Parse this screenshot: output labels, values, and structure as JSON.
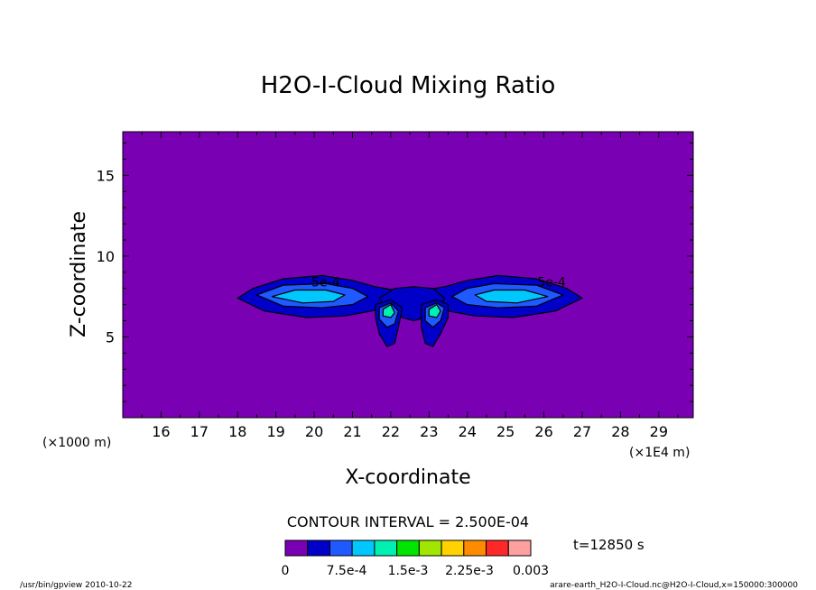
{
  "chart_data": {
    "type": "heatmap",
    "title": "H2O-I-Cloud Mixing Ratio",
    "xlabel": "X-coordinate",
    "ylabel": "Z-coordinate",
    "x_unit_left": "(×1000 m)",
    "x_unit_right": "(×1E4 m)",
    "x_ticks": [
      "16",
      "17",
      "18",
      "19",
      "20",
      "21",
      "22",
      "23",
      "24",
      "25",
      "26",
      "27",
      "28",
      "29"
    ],
    "x_tick_values": [
      16,
      17,
      18,
      19,
      20,
      21,
      22,
      23,
      24,
      25,
      26,
      27,
      28,
      29
    ],
    "y_ticks": [
      "5",
      "10",
      "15"
    ],
    "y_tick_values": [
      5,
      10,
      15
    ],
    "xlim": [
      15,
      29.9
    ],
    "ylim": [
      0,
      17.7
    ],
    "contour_interval_text": "CONTOUR INTERVAL = 2.500E-04",
    "contour_labels": [
      {
        "text": "5e-4",
        "x": 20.3,
        "y": 8.4
      },
      {
        "text": "5e-4",
        "x": 26.2,
        "y": 8.4
      }
    ],
    "time_text": "t=12850 s",
    "colorbar": {
      "colors": [
        "#7a00b4",
        "#0000c8",
        "#1e5aff",
        "#00c8ff",
        "#00f0b4",
        "#00e600",
        "#a0e600",
        "#ffd200",
        "#ff8c00",
        "#ff2828",
        "#ffa0a0"
      ],
      "tick_labels": [
        "0",
        "7.5e-4",
        "1.5e-3",
        "2.25e-3",
        "0.003"
      ],
      "tick_values": [
        0,
        0.00075,
        0.0015,
        0.00225,
        0.003
      ],
      "range": [
        0,
        0.003
      ]
    },
    "footer_left": "/usr/bin/gpview  2010-10-22",
    "footer_right": "arare-earth_H2O-I-Cloud.nc@H2O-I-Cloud,x=150000:300000",
    "cloud_regions": [
      {
        "name": "left-wing",
        "level": 1,
        "points": [
          [
            18.0,
            7.4
          ],
          [
            18.4,
            8.0
          ],
          [
            19.2,
            8.6
          ],
          [
            20.2,
            8.8
          ],
          [
            21.0,
            8.5
          ],
          [
            21.6,
            8.1
          ],
          [
            22.1,
            7.9
          ],
          [
            22.0,
            7.0
          ],
          [
            21.5,
            6.6
          ],
          [
            20.8,
            6.3
          ],
          [
            19.8,
            6.2
          ],
          [
            18.7,
            6.6
          ]
        ]
      },
      {
        "name": "left-wing",
        "level": 2,
        "points": [
          [
            18.5,
            7.6
          ],
          [
            19.2,
            8.2
          ],
          [
            20.3,
            8.3
          ],
          [
            21.0,
            8.0
          ],
          [
            21.4,
            7.5
          ],
          [
            21.0,
            7.0
          ],
          [
            20.2,
            6.8
          ],
          [
            19.2,
            6.9
          ]
        ]
      },
      {
        "name": "left-wing",
        "level": 3,
        "points": [
          [
            18.9,
            7.5
          ],
          [
            19.5,
            7.9
          ],
          [
            20.3,
            7.9
          ],
          [
            20.8,
            7.6
          ],
          [
            20.5,
            7.2
          ],
          [
            19.7,
            7.1
          ]
        ]
      },
      {
        "name": "right-wing",
        "level": 1,
        "points": [
          [
            22.9,
            7.9
          ],
          [
            23.4,
            8.1
          ],
          [
            24.0,
            8.5
          ],
          [
            24.8,
            8.8
          ],
          [
            25.8,
            8.6
          ],
          [
            26.6,
            8.0
          ],
          [
            27.0,
            7.4
          ],
          [
            26.3,
            6.6
          ],
          [
            25.2,
            6.2
          ],
          [
            24.2,
            6.3
          ],
          [
            23.5,
            6.6
          ],
          [
            23.0,
            7.0
          ]
        ]
      },
      {
        "name": "right-wing",
        "level": 2,
        "points": [
          [
            23.6,
            7.5
          ],
          [
            24.0,
            8.0
          ],
          [
            24.7,
            8.3
          ],
          [
            25.8,
            8.2
          ],
          [
            26.5,
            7.6
          ],
          [
            25.8,
            6.9
          ],
          [
            24.8,
            6.8
          ],
          [
            24.0,
            7.0
          ]
        ]
      },
      {
        "name": "right-wing",
        "level": 3,
        "points": [
          [
            24.2,
            7.6
          ],
          [
            24.7,
            7.9
          ],
          [
            25.5,
            7.9
          ],
          [
            26.1,
            7.5
          ],
          [
            25.3,
            7.1
          ],
          [
            24.5,
            7.2
          ]
        ]
      },
      {
        "name": "center",
        "level": 1,
        "points": [
          [
            21.7,
            7.4
          ],
          [
            22.1,
            8.0
          ],
          [
            22.6,
            8.1
          ],
          [
            23.1,
            8.0
          ],
          [
            23.4,
            7.4
          ],
          [
            23.2,
            6.4
          ],
          [
            22.6,
            6.0
          ],
          [
            22.0,
            6.4
          ]
        ]
      },
      {
        "name": "left-column",
        "level": 1,
        "points": [
          [
            21.6,
            7.0
          ],
          [
            22.0,
            7.3
          ],
          [
            22.3,
            6.8
          ],
          [
            22.2,
            5.6
          ],
          [
            22.1,
            4.6
          ],
          [
            21.9,
            4.4
          ],
          [
            21.7,
            5.2
          ],
          [
            21.6,
            6.2
          ]
        ]
      },
      {
        "name": "left-column",
        "level": 2,
        "points": [
          [
            21.7,
            6.8
          ],
          [
            22.0,
            7.1
          ],
          [
            22.2,
            6.6
          ],
          [
            22.1,
            5.8
          ],
          [
            21.9,
            5.6
          ],
          [
            21.7,
            6.1
          ]
        ]
      },
      {
        "name": "left-column",
        "level": 4,
        "points": [
          [
            21.8,
            6.7
          ],
          [
            22.0,
            7.0
          ],
          [
            22.1,
            6.5
          ],
          [
            22.0,
            6.2
          ],
          [
            21.8,
            6.3
          ]
        ]
      },
      {
        "name": "right-column",
        "level": 1,
        "points": [
          [
            22.8,
            7.0
          ],
          [
            23.2,
            7.3
          ],
          [
            23.5,
            7.0
          ],
          [
            23.5,
            6.2
          ],
          [
            23.3,
            5.2
          ],
          [
            23.1,
            4.4
          ],
          [
            22.9,
            4.6
          ],
          [
            22.8,
            5.6
          ]
        ]
      },
      {
        "name": "right-column",
        "level": 2,
        "points": [
          [
            22.9,
            6.8
          ],
          [
            23.2,
            7.1
          ],
          [
            23.4,
            6.8
          ],
          [
            23.3,
            6.0
          ],
          [
            23.1,
            5.6
          ],
          [
            22.9,
            6.0
          ]
        ]
      },
      {
        "name": "right-column",
        "level": 4,
        "points": [
          [
            23.0,
            6.7
          ],
          [
            23.2,
            7.0
          ],
          [
            23.3,
            6.6
          ],
          [
            23.2,
            6.2
          ],
          [
            23.0,
            6.3
          ]
        ]
      }
    ]
  }
}
